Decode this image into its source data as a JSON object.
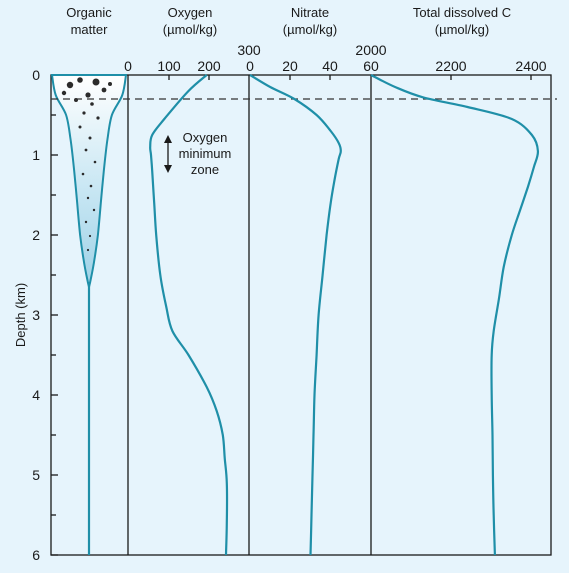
{
  "chart_data": {
    "type": "line",
    "ylabel": "Depth (km)",
    "ylim": [
      6,
      0
    ],
    "yticks": [
      "0",
      "1",
      "2",
      "3",
      "4",
      "5",
      "6"
    ],
    "grid": false,
    "mixed_layer_line": {
      "depth": 0.3,
      "style": "dashed"
    },
    "panels": [
      {
        "key": "organic",
        "title_lines": [
          "Organic",
          "matter"
        ],
        "xticks": [
          "0"
        ],
        "profile_width": [
          [
            0,
            1.0
          ],
          [
            0.25,
            0.9
          ],
          [
            0.5,
            0.62
          ],
          [
            0.8,
            0.5
          ],
          [
            1.2,
            0.4
          ],
          [
            1.6,
            0.32
          ],
          [
            2.0,
            0.24
          ],
          [
            2.3,
            0.15
          ],
          [
            2.55,
            0.05
          ],
          [
            2.65,
            0.0
          ]
        ],
        "color": "#1f8fa8"
      },
      {
        "key": "oxygen",
        "title_lines": [
          "Oxygen",
          "(µmol/kg)"
        ],
        "xticks": [
          "0",
          "100",
          "200",
          "300"
        ],
        "xlim": [
          0,
          300
        ],
        "series": [
          {
            "points": [
              [
                195,
                0
              ],
              [
                150,
                0.2
              ],
              [
                90,
                0.55
              ],
              [
                60,
                0.75
              ],
              [
                55,
                0.9
              ],
              [
                57,
                1.0
              ],
              [
                60,
                1.2
              ],
              [
                65,
                1.6
              ],
              [
                70,
                2.0
              ],
              [
                80,
                2.5
              ],
              [
                95,
                2.9
              ],
              [
                110,
                3.2
              ],
              [
                150,
                3.5
              ],
              [
                195,
                3.9
              ],
              [
                220,
                4.2
              ],
              [
                235,
                4.5
              ],
              [
                240,
                4.8
              ],
              [
                245,
                5.1
              ],
              [
                245,
                5.6
              ],
              [
                243,
                6.0
              ]
            ]
          }
        ],
        "annotation": [
          "Oxygen",
          "minimum",
          "zone"
        ]
      },
      {
        "key": "nitrate",
        "title_lines": [
          "Nitrate",
          "(µmol/kg)"
        ],
        "xticks": [
          "0",
          "20",
          "40",
          "60"
        ],
        "xlim": [
          0,
          60
        ],
        "series": [
          {
            "points": [
              [
                0,
                0
              ],
              [
                10,
                0.15
              ],
              [
                22,
                0.3
              ],
              [
                33,
                0.5
              ],
              [
                40,
                0.7
              ],
              [
                44,
                0.85
              ],
              [
                45,
                0.95
              ],
              [
                44,
                1.05
              ],
              [
                42,
                1.3
              ],
              [
                40,
                1.6
              ],
              [
                38,
                2.0
              ],
              [
                36,
                2.5
              ],
              [
                34,
                3.0
              ],
              [
                33,
                3.5
              ],
              [
                32,
                4.0
              ],
              [
                31.5,
                4.5
              ],
              [
                31,
                5.0
              ],
              [
                30.5,
                5.5
              ],
              [
                30,
                6.0
              ]
            ]
          }
        ]
      },
      {
        "key": "dic",
        "title_lines": [
          "Total dissolved C",
          "(µmol/kg)"
        ],
        "xticks": [
          "2000",
          "2200",
          "2400"
        ],
        "xlim": [
          2000,
          2450
        ],
        "series": [
          {
            "points": [
              [
                2000,
                0
              ],
              [
                2060,
                0.15
              ],
              [
                2130,
                0.28
              ],
              [
                2240,
                0.4
              ],
              [
                2350,
                0.55
              ],
              [
                2400,
                0.75
              ],
              [
                2415,
                0.95
              ],
              [
                2405,
                1.15
              ],
              [
                2390,
                1.4
              ],
              [
                2370,
                1.7
              ],
              [
                2350,
                2.0
              ],
              [
                2330,
                2.4
              ],
              [
                2318,
                2.8
              ],
              [
                2305,
                3.2
              ],
              [
                2300,
                3.5
              ],
              [
                2300,
                4.0
              ],
              [
                2302,
                4.5
              ],
              [
                2303,
                5.0
              ],
              [
                2305,
                5.5
              ],
              [
                2308,
                6.0
              ]
            ]
          }
        ]
      }
    ]
  }
}
